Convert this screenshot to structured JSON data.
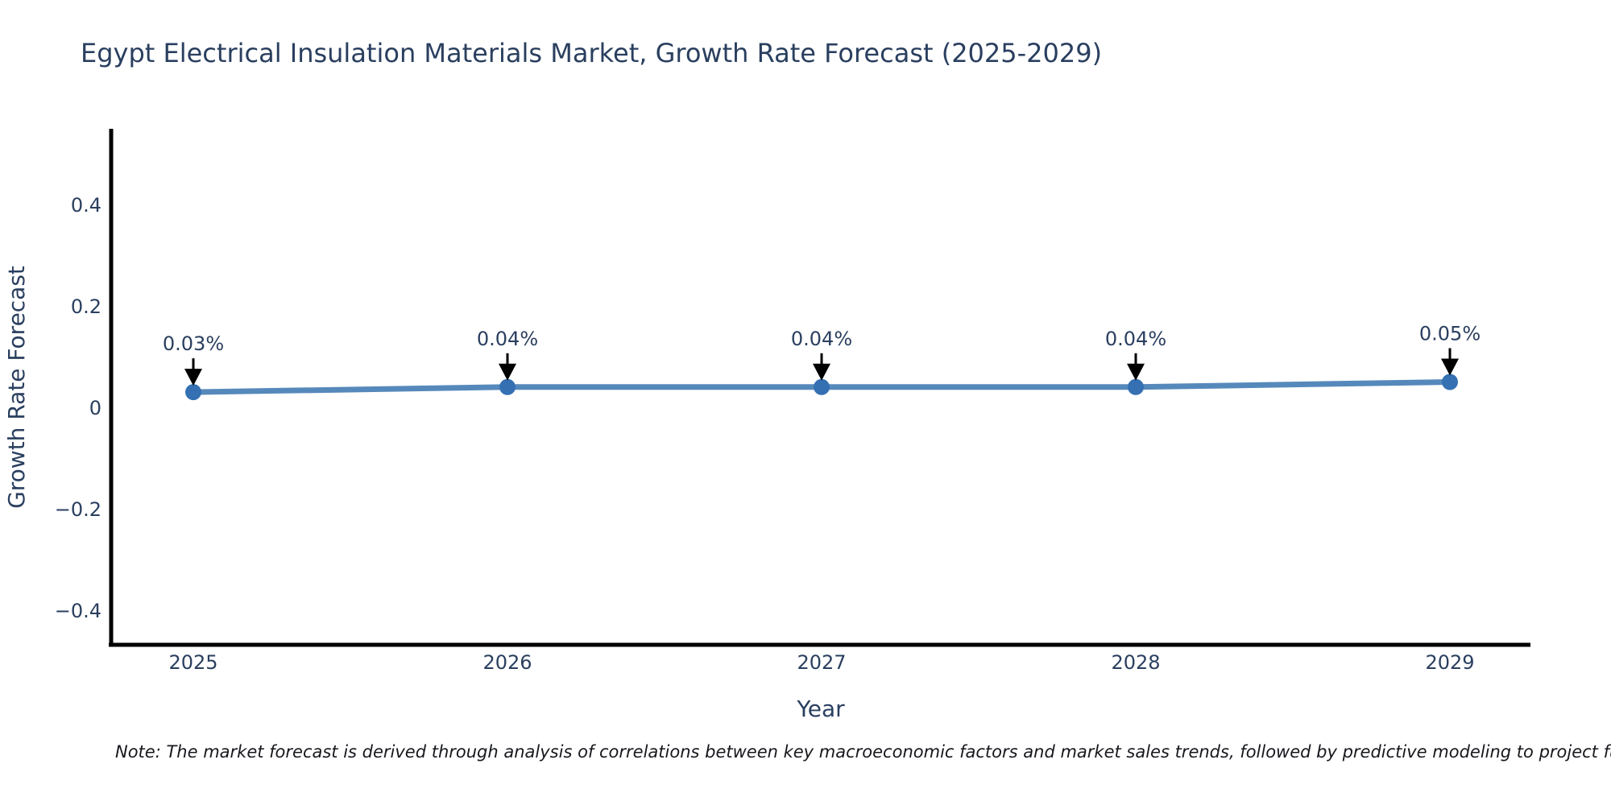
{
  "note": "Note: The market forecast is derived through analysis of correlations between key macroeconomic factors and market sales trends, followed by predictive modeling to project future sa",
  "colors": {
    "text": "#2a3f5f",
    "axis": "#000000",
    "note_text": "#16181d",
    "background": "#ffffff",
    "line": "#5689bb",
    "marker": "#3470b2",
    "annotation_arrow": "#000000"
  },
  "chart_data": {
    "type": "line",
    "title": "Egypt Electrical Insulation Materials Market, Growth Rate Forecast (2025-2029)",
    "xlabel": "Year",
    "ylabel": "Growth Rate Forecast",
    "categories": [
      "2025",
      "2026",
      "2027",
      "2028",
      "2029"
    ],
    "values": [
      0.03,
      0.04,
      0.04,
      0.04,
      0.05
    ],
    "point_labels": [
      "0.03%",
      "0.04%",
      "0.04%",
      "0.04%",
      "0.05%"
    ],
    "yticks": [
      {
        "label": "0.4",
        "value": 0.4
      },
      {
        "label": "0.2",
        "value": 0.2
      },
      {
        "label": "0",
        "value": 0
      },
      {
        "label": "−0.2",
        "value": -0.2
      },
      {
        "label": "−0.4",
        "value": -0.4
      }
    ],
    "ylim": [
      -0.47,
      0.55
    ],
    "grid": false,
    "legend": "none",
    "annotations_style": "label-with-down-arrow"
  }
}
